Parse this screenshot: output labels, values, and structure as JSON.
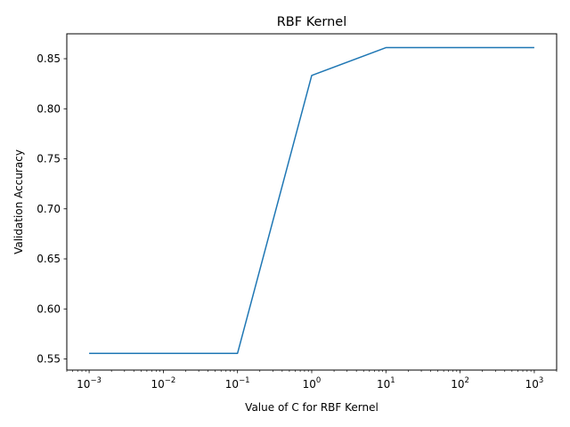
{
  "chart_data": {
    "type": "line",
    "title": "RBF Kernel",
    "xlabel": "Value of C for RBF Kernel",
    "ylabel": "Validation Accuracy",
    "xscale": "log",
    "xlim": [
      0.0005,
      2000
    ],
    "ylim": [
      0.5389,
      0.8749
    ],
    "grid": false,
    "xticks": [
      {
        "value": 0.001,
        "base": "10",
        "exp": "−3"
      },
      {
        "value": 0.01,
        "base": "10",
        "exp": "−2"
      },
      {
        "value": 0.1,
        "base": "10",
        "exp": "−1"
      },
      {
        "value": 1,
        "base": "10",
        "exp": "0"
      },
      {
        "value": 10,
        "base": "10",
        "exp": "1"
      },
      {
        "value": 100,
        "base": "10",
        "exp": "2"
      },
      {
        "value": 1000,
        "base": "10",
        "exp": "3"
      }
    ],
    "yticks": [
      {
        "value": 0.55,
        "label": "0.55"
      },
      {
        "value": 0.6,
        "label": "0.60"
      },
      {
        "value": 0.65,
        "label": "0.65"
      },
      {
        "value": 0.7,
        "label": "0.70"
      },
      {
        "value": 0.75,
        "label": "0.75"
      },
      {
        "value": 0.8,
        "label": "0.80"
      },
      {
        "value": 0.85,
        "label": "0.85"
      }
    ],
    "series": [
      {
        "color": "#1f77b4",
        "x": [
          0.001,
          0.01,
          0.1,
          1,
          10,
          100,
          1000
        ],
        "y": [
          0.5556,
          0.5556,
          0.5556,
          0.8333,
          0.8611,
          0.8611,
          0.8611
        ]
      }
    ]
  }
}
